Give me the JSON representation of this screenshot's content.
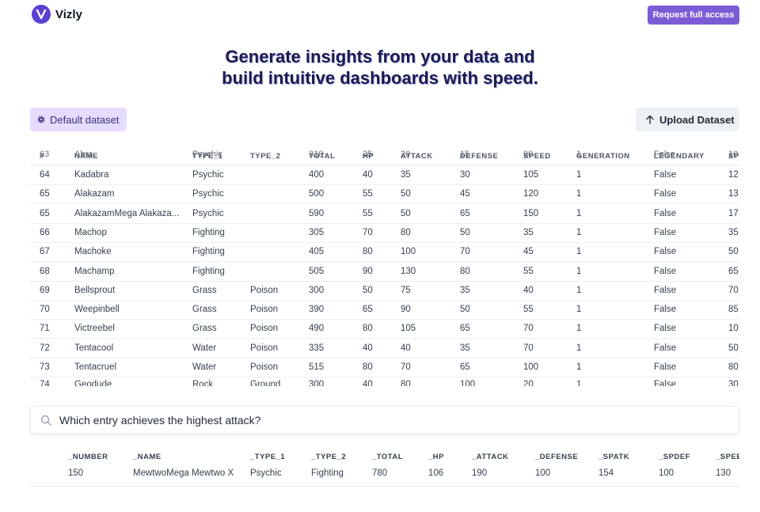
{
  "brand": {
    "name": "Vizly",
    "logo_letter": "V",
    "color": "#5b3fd1"
  },
  "header": {
    "access_label": "Request full access"
  },
  "hero": {
    "line1": "Generate insights from your data and",
    "line2": "build intuitive dashboards with speed."
  },
  "toolbar": {
    "default_dataset_label": "Default dataset",
    "upload_label": "Upload Dataset"
  },
  "table": {
    "ghost_row": [
      "63",
      "Abra",
      "Psychic",
      "",
      "310",
      "25",
      "20",
      "15",
      "90",
      "1",
      "False",
      "10"
    ],
    "columns": [
      "#",
      "NAME",
      "TYPE_1",
      "TYPE_2",
      "TOTAL",
      "HP",
      "ATTACK",
      "DEFENSE",
      "SPEED",
      "GENERATION",
      "LEGENDARY",
      "SP"
    ],
    "rows": [
      [
        "64",
        "Kadabra",
        "Psychic",
        "",
        "400",
        "40",
        "35",
        "30",
        "105",
        "1",
        "False",
        "12"
      ],
      [
        "65",
        "Alakazam",
        "Psychic",
        "",
        "500",
        "55",
        "50",
        "45",
        "120",
        "1",
        "False",
        "13"
      ],
      [
        "65",
        "AlakazamMega Alakaza...",
        "Psychic",
        "",
        "590",
        "55",
        "50",
        "65",
        "150",
        "1",
        "False",
        "17"
      ],
      [
        "66",
        "Machop",
        "Fighting",
        "",
        "305",
        "70",
        "80",
        "50",
        "35",
        "1",
        "False",
        "35"
      ],
      [
        "67",
        "Machoke",
        "Fighting",
        "",
        "405",
        "80",
        "100",
        "70",
        "45",
        "1",
        "False",
        "50"
      ],
      [
        "68",
        "Machamp",
        "Fighting",
        "",
        "505",
        "90",
        "130",
        "80",
        "55",
        "1",
        "False",
        "65"
      ],
      [
        "69",
        "Bellsprout",
        "Grass",
        "Poison",
        "300",
        "50",
        "75",
        "35",
        "40",
        "1",
        "False",
        "70"
      ],
      [
        "70",
        "Weepinbell",
        "Grass",
        "Poison",
        "390",
        "65",
        "90",
        "50",
        "55",
        "1",
        "False",
        "85"
      ],
      [
        "71",
        "Victreebel",
        "Grass",
        "Poison",
        "490",
        "80",
        "105",
        "65",
        "70",
        "1",
        "False",
        "10"
      ],
      [
        "72",
        "Tentacool",
        "Water",
        "Poison",
        "335",
        "40",
        "40",
        "35",
        "70",
        "1",
        "False",
        "50"
      ],
      [
        "73",
        "Tentacruel",
        "Water",
        "Poison",
        "515",
        "80",
        "70",
        "65",
        "100",
        "1",
        "False",
        "80"
      ]
    ],
    "partial_row": [
      "74",
      "Geodude",
      "Rock",
      "Ground",
      "300",
      "40",
      "80",
      "100",
      "20",
      "1",
      "False",
      "30"
    ]
  },
  "search": {
    "query": "Which entry achieves the highest attack?",
    "icon": "search-icon"
  },
  "result": {
    "columns": [
      "_NUMBER",
      "_NAME",
      "_TYPE_1",
      "_TYPE_2",
      "_TOTAL",
      "_HP",
      "_ATTACK",
      "_DEFENSE",
      "_SPATK",
      "_SPDEF",
      "_SPEEI"
    ],
    "row": [
      "150",
      "MewtwoMega Mewtwo X",
      "Psychic",
      "Fighting",
      "780",
      "106",
      "190",
      "100",
      "154",
      "100",
      "130"
    ]
  }
}
